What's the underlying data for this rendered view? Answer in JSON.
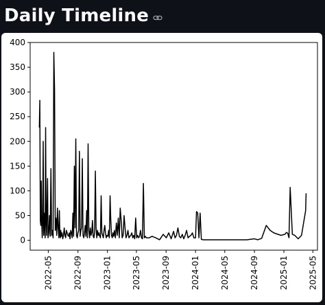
{
  "page": {
    "title": "Daily Timeline",
    "link_icon": "link-icon"
  },
  "colors": {
    "background": "#0e1117",
    "title": "#fafafa",
    "card": "#ffffff",
    "line": "#000000"
  },
  "chart_data": {
    "type": "line",
    "title": "",
    "xlabel": "",
    "ylabel": "",
    "xlim": [
      "2022-02-15",
      "2025-05-20"
    ],
    "ylim": [
      -20,
      400
    ],
    "yticks": [
      0,
      50,
      100,
      150,
      200,
      250,
      300,
      350,
      400
    ],
    "xticks": [
      "2022-05",
      "2022-09",
      "2023-01",
      "2023-05",
      "2023-09",
      "2024-01",
      "2024-05",
      "2024-09",
      "2025-01",
      "2025-05"
    ],
    "xtick_rotation": 90,
    "grid": false,
    "legend": "none",
    "series": [
      {
        "name": "",
        "x": [
          "2022-03-25",
          "2022-03-27",
          "2022-03-29",
          "2022-03-31",
          "2022-04-02",
          "2022-04-04",
          "2022-04-06",
          "2022-04-08",
          "2022-04-10",
          "2022-04-12",
          "2022-04-14",
          "2022-04-16",
          "2022-04-18",
          "2022-04-20",
          "2022-04-22",
          "2022-04-24",
          "2022-04-26",
          "2022-04-28",
          "2022-04-30",
          "2022-05-03",
          "2022-05-06",
          "2022-05-09",
          "2022-05-12",
          "2022-05-15",
          "2022-05-18",
          "2022-05-21",
          "2022-05-24",
          "2022-05-27",
          "2022-05-30",
          "2022-06-02",
          "2022-06-05",
          "2022-06-08",
          "2022-06-11",
          "2022-06-14",
          "2022-06-16",
          "2022-06-18",
          "2022-06-20",
          "2022-06-22",
          "2022-06-24",
          "2022-06-27",
          "2022-06-30",
          "2022-07-03",
          "2022-07-06",
          "2022-07-09",
          "2022-07-12",
          "2022-07-15",
          "2022-07-18",
          "2022-07-21",
          "2022-07-24",
          "2022-07-27",
          "2022-07-30",
          "2022-08-02",
          "2022-08-05",
          "2022-08-08",
          "2022-08-11",
          "2022-08-14",
          "2022-08-17",
          "2022-08-20",
          "2022-08-23",
          "2022-08-26",
          "2022-08-29",
          "2022-09-01",
          "2022-09-04",
          "2022-09-07",
          "2022-09-10",
          "2022-09-13",
          "2022-09-16",
          "2022-09-19",
          "2022-09-22",
          "2022-09-25",
          "2022-09-28",
          "2022-10-01",
          "2022-10-04",
          "2022-10-07",
          "2022-10-10",
          "2022-10-13",
          "2022-10-16",
          "2022-10-19",
          "2022-10-22",
          "2022-10-25",
          "2022-10-28",
          "2022-10-31",
          "2022-11-03",
          "2022-11-06",
          "2022-11-09",
          "2022-11-12",
          "2022-11-15",
          "2022-11-18",
          "2022-11-21",
          "2022-11-24",
          "2022-11-27",
          "2022-11-30",
          "2022-12-03",
          "2022-12-06",
          "2022-12-09",
          "2022-12-12",
          "2022-12-15",
          "2022-12-18",
          "2022-12-21",
          "2022-12-24",
          "2022-12-27",
          "2022-12-30",
          "2023-01-03",
          "2023-01-06",
          "2023-01-09",
          "2023-01-12",
          "2023-01-15",
          "2023-01-18",
          "2023-01-21",
          "2023-01-24",
          "2023-01-27",
          "2023-01-30",
          "2023-02-03",
          "2023-02-07",
          "2023-02-11",
          "2023-02-15",
          "2023-02-19",
          "2023-02-23",
          "2023-02-27",
          "2023-03-03",
          "2023-03-07",
          "2023-03-11",
          "2023-03-15",
          "2023-03-19",
          "2023-03-23",
          "2023-03-27",
          "2023-03-31",
          "2023-04-04",
          "2023-04-08",
          "2023-04-12",
          "2023-04-16",
          "2023-04-20",
          "2023-04-24",
          "2023-04-28",
          "2023-05-02",
          "2023-05-06",
          "2023-05-10",
          "2023-05-14",
          "2023-05-18",
          "2023-05-22",
          "2023-05-26",
          "2023-05-30",
          "2023-06-03",
          "2023-06-07",
          "2023-06-11",
          "2023-06-15",
          "2023-06-19",
          "2023-06-23",
          "2023-07-05",
          "2023-07-20",
          "2023-08-05",
          "2023-08-20",
          "2023-09-02",
          "2023-09-12",
          "2023-09-22",
          "2023-10-02",
          "2023-10-08",
          "2023-10-14",
          "2023-10-20",
          "2023-10-26",
          "2023-11-01",
          "2023-11-07",
          "2023-11-13",
          "2023-11-19",
          "2023-11-25",
          "2023-12-01",
          "2023-12-07",
          "2023-12-13",
          "2023-12-19",
          "2023-12-25",
          "2024-01-01",
          "2024-01-05",
          "2024-01-10",
          "2024-01-15",
          "2024-01-20",
          "2024-01-25",
          "2024-02-01",
          "2024-02-10",
          "2024-02-20",
          "2024-03-01",
          "2024-04-01",
          "2024-06-01",
          "2024-08-01",
          "2024-09-01",
          "2024-09-15",
          "2024-10-01",
          "2024-10-20",
          "2024-11-05",
          "2024-11-20",
          "2024-12-20",
          "2025-01-05",
          "2025-01-12",
          "2025-01-17",
          "2025-01-22",
          "2025-01-27",
          "2025-02-05",
          "2025-02-15",
          "2025-03-01",
          "2025-03-15",
          "2025-04-01",
          "2025-04-03"
        ],
        "values": [
          228,
          283,
          40,
          30,
          120,
          35,
          5,
          45,
          200,
          10,
          55,
          30,
          5,
          228,
          40,
          10,
          70,
          125,
          5,
          15,
          50,
          8,
          145,
          10,
          20,
          5,
          380,
          305,
          20,
          45,
          10,
          65,
          25,
          5,
          60,
          10,
          5,
          20,
          8,
          15,
          3,
          10,
          25,
          10,
          5,
          20,
          15,
          10,
          8,
          15,
          3,
          20,
          15,
          5,
          55,
          8,
          150,
          25,
          205,
          10,
          5,
          15,
          20,
          180,
          8,
          20,
          25,
          165,
          10,
          5,
          15,
          30,
          8,
          60,
          5,
          195,
          20,
          5,
          25,
          10,
          15,
          40,
          8,
          5,
          15,
          140,
          25,
          5,
          20,
          10,
          15,
          8,
          5,
          90,
          15,
          10,
          5,
          20,
          30,
          15,
          5,
          10,
          8,
          20,
          5,
          90,
          40,
          10,
          5,
          15,
          8,
          20,
          5,
          35,
          10,
          45,
          5,
          65,
          40,
          5,
          10,
          50,
          25,
          5,
          10,
          20,
          5,
          8,
          10,
          15,
          5,
          10,
          3,
          45,
          5,
          10,
          5,
          8,
          20,
          5,
          3,
          115,
          5,
          8,
          5,
          5,
          5,
          5,
          8,
          5,
          1,
          12,
          5,
          15,
          3,
          18,
          5,
          10,
          25,
          8,
          5,
          12,
          3,
          10,
          20,
          5,
          8,
          10,
          15,
          5,
          5,
          58,
          55,
          5,
          55,
          2,
          1,
          1,
          1,
          1,
          1,
          1,
          1,
          3,
          1,
          4,
          30,
          20,
          15,
          10,
          12,
          16,
          14,
          5,
          107,
          12,
          10,
          3,
          10,
          60,
          95
        ]
      }
    ]
  }
}
